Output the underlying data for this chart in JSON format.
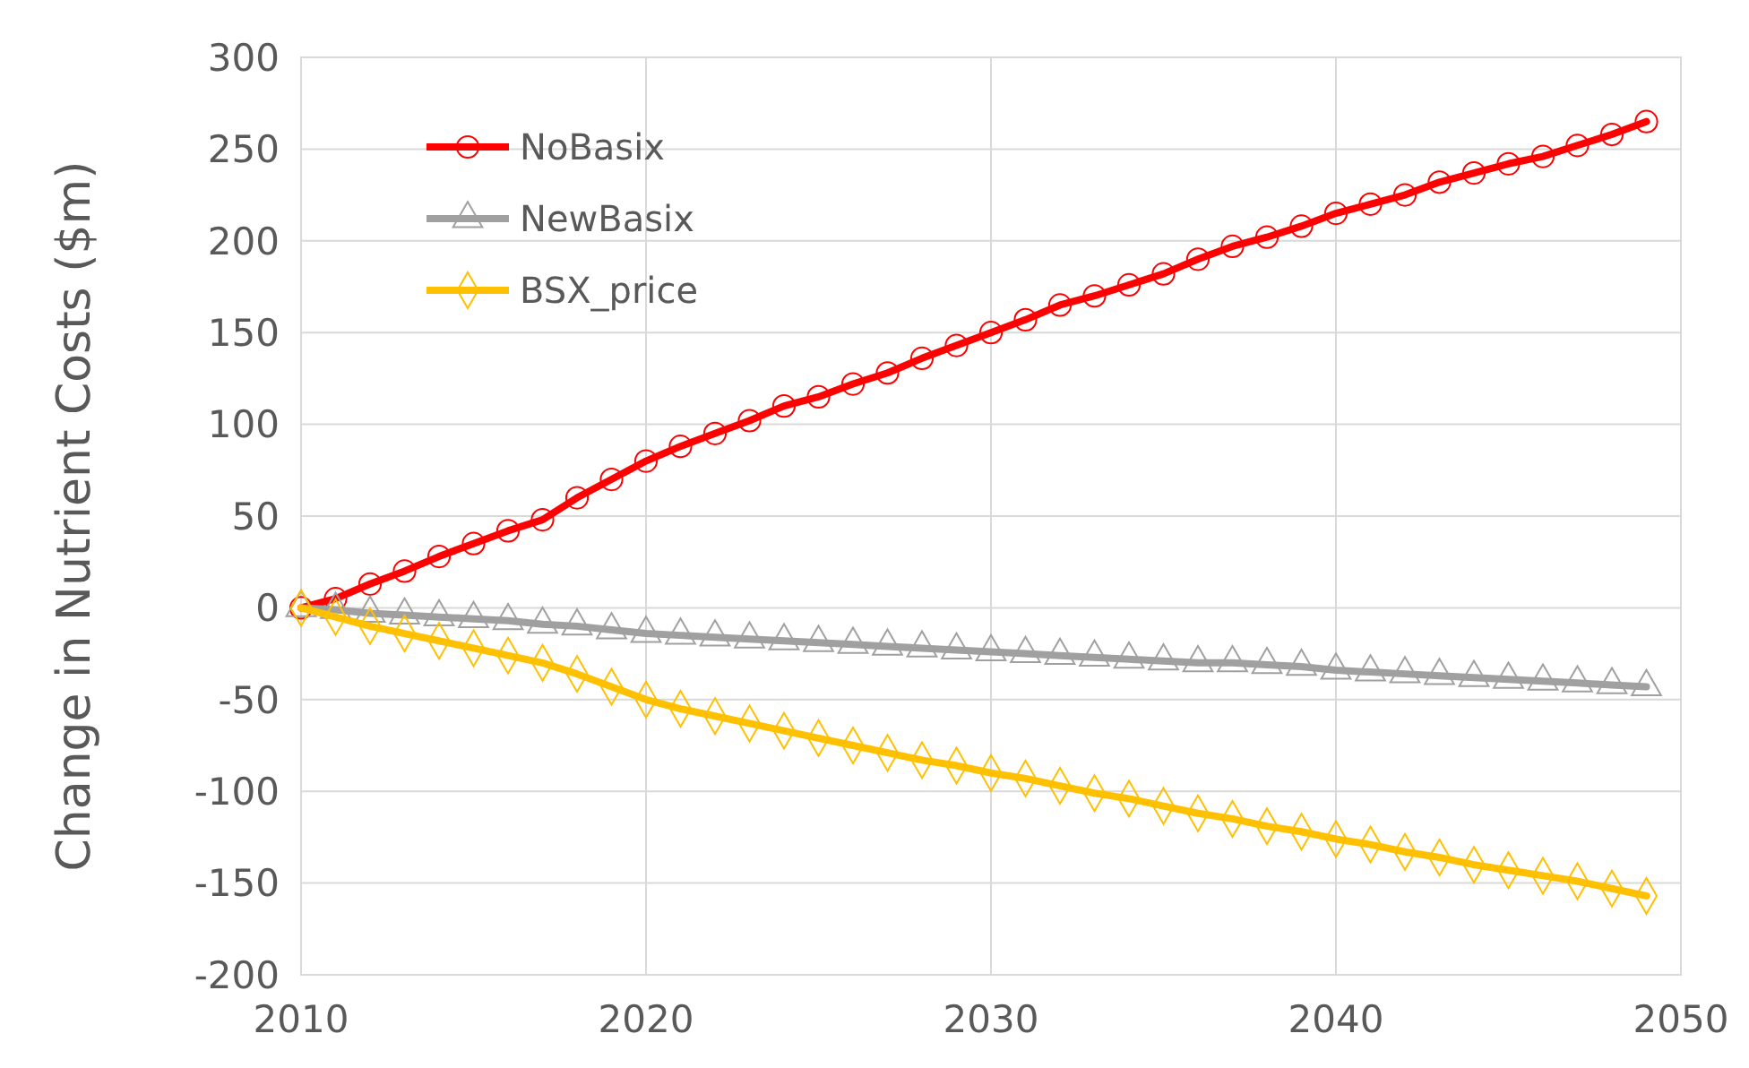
{
  "chart_data": {
    "type": "line",
    "ylabel": "Change in Nutrient Costs ($m)",
    "x": [
      2010,
      2011,
      2012,
      2013,
      2014,
      2015,
      2016,
      2017,
      2018,
      2019,
      2020,
      2021,
      2022,
      2023,
      2024,
      2025,
      2026,
      2027,
      2028,
      2029,
      2030,
      2031,
      2032,
      2033,
      2034,
      2035,
      2036,
      2037,
      2038,
      2039,
      2040,
      2041,
      2042,
      2043,
      2044,
      2045,
      2046,
      2047,
      2048,
      2049
    ],
    "xlim": [
      2010,
      2050
    ],
    "xticks": [
      2010,
      2020,
      2030,
      2040,
      2050
    ],
    "ylim": [
      -200,
      300
    ],
    "yticks": [
      -200,
      -150,
      -100,
      -50,
      0,
      50,
      100,
      150,
      200,
      250,
      300
    ],
    "grid": true,
    "legend": "top left",
    "series": [
      {
        "name": "NoBasix",
        "color": "#ff0000",
        "marker": "circle",
        "values": [
          0,
          5,
          13,
          20,
          28,
          35,
          42,
          48,
          60,
          70,
          80,
          88,
          95,
          102,
          110,
          115,
          122,
          128,
          136,
          143,
          150,
          157,
          165,
          170,
          176,
          182,
          190,
          197,
          202,
          208,
          215,
          220,
          225,
          232,
          237,
          242,
          246,
          252,
          258,
          265
        ]
      },
      {
        "name": "NewBasix",
        "color": "#a0a0a0",
        "marker": "triangle",
        "values": [
          0,
          -1,
          -3,
          -4,
          -5,
          -6,
          -7,
          -9,
          -10,
          -12,
          -14,
          -15,
          -16,
          -17,
          -18,
          -19,
          -20,
          -21,
          -22,
          -23,
          -24,
          -25,
          -26,
          -27,
          -28,
          -29,
          -30,
          -30,
          -31,
          -32,
          -34,
          -35,
          -36,
          -37,
          -38,
          -39,
          -40,
          -41,
          -42,
          -43
        ]
      },
      {
        "name": "BSX_price",
        "color": "#ffc000",
        "marker": "diamond",
        "values": [
          0,
          -5,
          -10,
          -14,
          -18,
          -22,
          -26,
          -30,
          -36,
          -43,
          -50,
          -55,
          -59,
          -63,
          -67,
          -71,
          -75,
          -79,
          -83,
          -86,
          -90,
          -93,
          -97,
          -101,
          -104,
          -108,
          -112,
          -115,
          -119,
          -122,
          -126,
          -129,
          -133,
          -136,
          -140,
          -143,
          -146,
          -149,
          -153,
          -157
        ]
      }
    ]
  }
}
